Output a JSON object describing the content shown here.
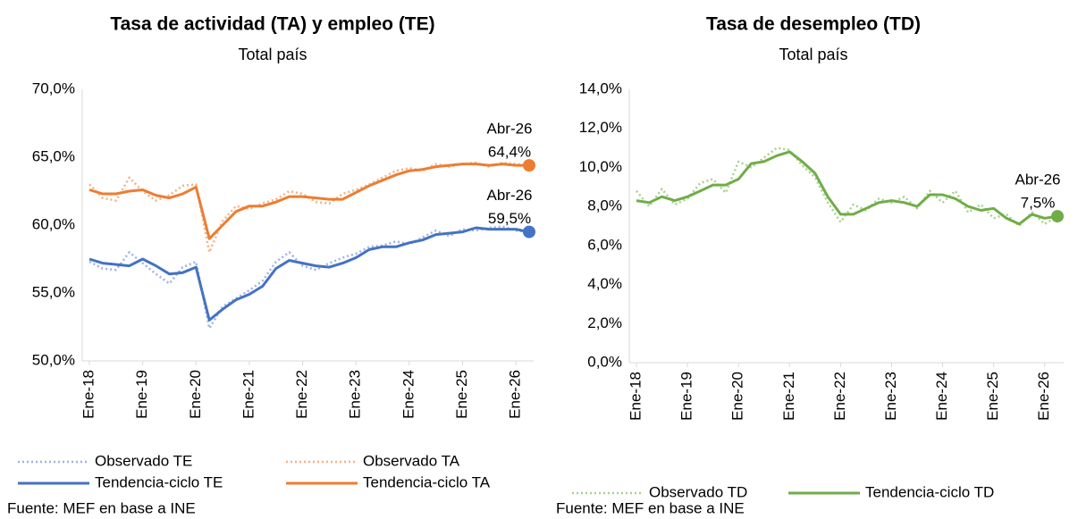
{
  "chart_data": [
    {
      "type": "line",
      "title": "Tasa de actividad (TA) y empleo (TE)",
      "subtitle": "Total país",
      "source": "Fuente: MEF en base a INE",
      "categories": [
        "Ene-18",
        null,
        null,
        null,
        "Ene-19",
        null,
        null,
        null,
        "Ene-20",
        null,
        null,
        null,
        "Ene-21",
        null,
        null,
        null,
        "Ene-22",
        null,
        null,
        null,
        "Ene-23",
        null,
        null,
        null,
        "Ene-24",
        null,
        null,
        null,
        "Ene-25",
        null,
        null,
        null,
        "Ene-26",
        null
      ],
      "last_category": "Abr-26",
      "ylim": [
        50,
        70
      ],
      "yticks": [
        {
          "value": 50,
          "label": "50,0%"
        },
        {
          "value": 55,
          "label": "55,0%"
        },
        {
          "value": 60,
          "label": "60,0%"
        },
        {
          "value": 65,
          "label": "65,0%"
        },
        {
          "value": 70,
          "label": "70,0%"
        }
      ],
      "grid": false,
      "series": [
        {
          "name": "Observado TE",
          "color": "#9db3e0",
          "style": "dotted",
          "values": [
            57.3,
            56.8,
            56.7,
            58.0,
            57.2,
            56.4,
            55.7,
            56.9,
            57.3,
            52.4,
            54.0,
            54.6,
            55.2,
            55.9,
            57.3,
            58.0,
            57.0,
            56.7,
            57.2,
            57.6,
            57.9,
            58.4,
            58.5,
            58.8,
            58.6,
            59.1,
            59.6,
            59.2,
            59.7,
            59.6,
            59.8,
            59.9,
            59.6,
            59.5
          ]
        },
        {
          "name": "Observado TA",
          "color": "#f4b183",
          "style": "dotted",
          "values": [
            63.0,
            62.0,
            61.8,
            63.5,
            62.5,
            61.8,
            62.2,
            62.9,
            63.0,
            58.0,
            60.3,
            61.4,
            61.2,
            61.6,
            61.9,
            62.5,
            62.3,
            61.7,
            61.6,
            62.3,
            62.6,
            63.0,
            63.5,
            64.0,
            64.2,
            64.0,
            64.5,
            64.3,
            64.5,
            64.6,
            64.3,
            64.6,
            64.5,
            64.4
          ]
        },
        {
          "name": "Tendencia-ciclo TE",
          "color": "#4472c4",
          "style": "solid",
          "last_label": "59,5%",
          "values": [
            57.5,
            57.2,
            57.1,
            57.0,
            57.5,
            57.0,
            56.4,
            56.5,
            56.9,
            53.0,
            53.8,
            54.5,
            54.9,
            55.5,
            56.8,
            57.4,
            57.2,
            57.0,
            56.9,
            57.2,
            57.6,
            58.2,
            58.4,
            58.4,
            58.7,
            58.9,
            59.3,
            59.4,
            59.5,
            59.8,
            59.7,
            59.7,
            59.7,
            59.5
          ]
        },
        {
          "name": "Tendencia-ciclo TA",
          "color": "#ed7d31",
          "style": "solid",
          "last_label": "64,4%",
          "values": [
            62.6,
            62.3,
            62.3,
            62.5,
            62.6,
            62.2,
            62.0,
            62.3,
            62.8,
            59.0,
            60.0,
            61.0,
            61.4,
            61.4,
            61.7,
            62.1,
            62.1,
            62.0,
            61.9,
            61.9,
            62.4,
            62.9,
            63.3,
            63.7,
            64.0,
            64.1,
            64.3,
            64.4,
            64.5,
            64.5,
            64.4,
            64.5,
            64.4,
            64.4
          ]
        }
      ]
    },
    {
      "type": "line",
      "title": "Tasa de desempleo (TD)",
      "subtitle": "Total país",
      "source": "Fuente: MEF en base a INE",
      "categories": [
        "Ene-18",
        null,
        null,
        null,
        "Ene-19",
        null,
        null,
        null,
        "Ene-20",
        null,
        null,
        null,
        "Ene-21",
        null,
        null,
        null,
        "Ene-22",
        null,
        null,
        null,
        "Ene-23",
        null,
        null,
        null,
        "Ene-24",
        null,
        null,
        null,
        "Ene-25",
        null,
        null,
        null,
        "Ene-26",
        null
      ],
      "last_category": "Abr-26",
      "ylim": [
        0,
        14
      ],
      "yticks": [
        {
          "value": 0,
          "label": "0,0%"
        },
        {
          "value": 2,
          "label": "2,0%"
        },
        {
          "value": 4,
          "label": "4,0%"
        },
        {
          "value": 6,
          "label": "6,0%"
        },
        {
          "value": 8,
          "label": "8,0%"
        },
        {
          "value": 10,
          "label": "10,0%"
        },
        {
          "value": 12,
          "label": "12,0%"
        },
        {
          "value": 14,
          "label": "14,0%"
        }
      ],
      "grid": false,
      "series": [
        {
          "name": "Observado TD",
          "color": "#a9d18e",
          "style": "dotted",
          "values": [
            8.8,
            8.0,
            8.9,
            8.1,
            8.4,
            9.2,
            9.4,
            8.7,
            10.3,
            10.0,
            10.5,
            11.0,
            10.9,
            10.1,
            9.5,
            8.2,
            7.2,
            8.1,
            7.8,
            8.4,
            8.2,
            8.5,
            7.9,
            8.8,
            8.2,
            8.8,
            7.7,
            8.1,
            7.4,
            7.6,
            7.0,
            7.7,
            7.1,
            7.5
          ]
        },
        {
          "name": "Tendencia-ciclo TD",
          "color": "#70ad47",
          "style": "solid",
          "last_label": "7,5%",
          "values": [
            8.3,
            8.2,
            8.5,
            8.3,
            8.5,
            8.8,
            9.1,
            9.1,
            9.4,
            10.2,
            10.3,
            10.6,
            10.8,
            10.3,
            9.7,
            8.5,
            7.6,
            7.6,
            7.9,
            8.2,
            8.3,
            8.2,
            8.0,
            8.6,
            8.6,
            8.4,
            8.0,
            7.8,
            7.9,
            7.4,
            7.1,
            7.6,
            7.4,
            7.5
          ]
        }
      ]
    }
  ]
}
